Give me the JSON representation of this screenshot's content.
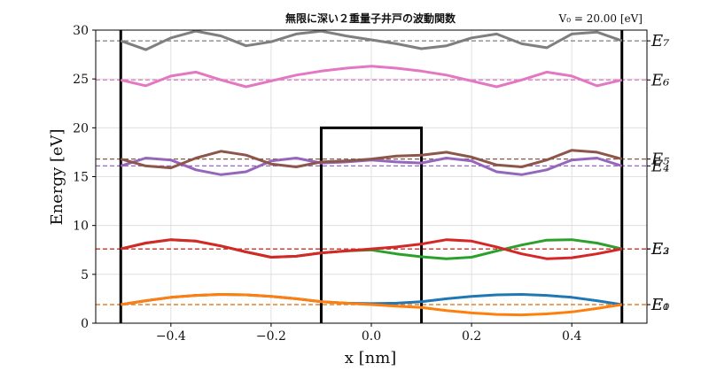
{
  "chart_data": {
    "type": "line",
    "title": "無限に深い２重量子井戸の波動関数",
    "annotation": "V₀ = 20.00 [eV]",
    "xlabel": "x [nm]",
    "ylabel": "Energy [eV]",
    "xlim": [
      -0.55,
      0.55
    ],
    "ylim": [
      0,
      30
    ],
    "xticks": [
      -0.4,
      -0.2,
      0.0,
      0.2,
      0.4
    ],
    "xtick_labels": [
      "−0.4",
      "−0.2",
      "0.0",
      "0.2",
      "0.4"
    ],
    "yticks": [
      0,
      5,
      10,
      15,
      20,
      25,
      30
    ],
    "ytick_labels": [
      "0",
      "5",
      "10",
      "15",
      "20",
      "25",
      "30"
    ],
    "grid": true,
    "potential": {
      "outer_walls_x": [
        -0.5,
        0.5
      ],
      "barrier_x": [
        -0.1,
        0.1
      ],
      "barrier_height": 20
    },
    "levels": [
      {
        "label": "E₀",
        "energy": 1.9,
        "color": "#1f77b4"
      },
      {
        "label": "E₁",
        "energy": 1.9,
        "color": "#ff7f0e"
      },
      {
        "label": "E₂",
        "energy": 7.6,
        "color": "#2ca02c"
      },
      {
        "label": "E₃",
        "energy": 7.6,
        "color": "#d62728"
      },
      {
        "label": "E₄",
        "energy": 16.1,
        "color": "#9467bd"
      },
      {
        "label": "E₅",
        "energy": 16.8,
        "color": "#8c564b"
      },
      {
        "label": "E₆",
        "energy": 24.9,
        "color": "#e377c2"
      },
      {
        "label": "E₇",
        "energy": 28.9,
        "color": "#7f7f7f"
      }
    ],
    "series": [
      {
        "label": "E₀",
        "color": "#1f77b4",
        "x": [
          -0.5,
          -0.45,
          -0.4,
          -0.35,
          -0.3,
          -0.25,
          -0.2,
          -0.15,
          -0.1,
          -0.05,
          0,
          0.05,
          0.1,
          0.15,
          0.2,
          0.25,
          0.3,
          0.35,
          0.4,
          0.45,
          0.5
        ],
        "y": [
          1.9,
          2.3,
          2.65,
          2.85,
          2.95,
          2.9,
          2.75,
          2.5,
          2.2,
          2.05,
          2.0,
          2.05,
          2.2,
          2.5,
          2.75,
          2.9,
          2.95,
          2.85,
          2.65,
          2.3,
          1.9
        ]
      },
      {
        "label": "E₁",
        "color": "#ff7f0e",
        "x": [
          -0.5,
          -0.45,
          -0.4,
          -0.35,
          -0.3,
          -0.25,
          -0.2,
          -0.15,
          -0.1,
          -0.05,
          0,
          0.05,
          0.1,
          0.15,
          0.2,
          0.25,
          0.3,
          0.35,
          0.4,
          0.45,
          0.5
        ],
        "y": [
          1.9,
          2.3,
          2.65,
          2.85,
          2.95,
          2.9,
          2.75,
          2.5,
          2.2,
          2.05,
          1.9,
          1.75,
          1.6,
          1.3,
          1.05,
          0.9,
          0.85,
          0.95,
          1.15,
          1.5,
          1.9
        ]
      },
      {
        "label": "E₂",
        "color": "#2ca02c",
        "x": [
          -0.5,
          -0.45,
          -0.4,
          -0.35,
          -0.3,
          -0.25,
          -0.2,
          -0.15,
          -0.1,
          -0.05,
          0,
          0.05,
          0.1,
          0.15,
          0.2,
          0.25,
          0.3,
          0.35,
          0.4,
          0.45,
          0.5
        ],
        "y": [
          7.6,
          8.2,
          8.55,
          8.4,
          7.9,
          7.3,
          6.75,
          6.85,
          7.2,
          7.4,
          7.5,
          7.1,
          6.8,
          6.6,
          6.75,
          7.4,
          8.0,
          8.5,
          8.55,
          8.2,
          7.6
        ]
      },
      {
        "label": "E₃",
        "color": "#d62728",
        "x": [
          -0.5,
          -0.45,
          -0.4,
          -0.35,
          -0.3,
          -0.25,
          -0.2,
          -0.15,
          -0.1,
          -0.05,
          0,
          0.05,
          0.1,
          0.15,
          0.2,
          0.25,
          0.3,
          0.35,
          0.4,
          0.45,
          0.5
        ],
        "y": [
          7.6,
          8.2,
          8.55,
          8.4,
          7.9,
          7.3,
          6.75,
          6.85,
          7.2,
          7.4,
          7.6,
          7.8,
          8.1,
          8.55,
          8.4,
          7.8,
          7.1,
          6.6,
          6.7,
          7.1,
          7.6
        ]
      },
      {
        "label": "E₄",
        "color": "#9467bd",
        "x": [
          -0.5,
          -0.45,
          -0.4,
          -0.35,
          -0.3,
          -0.25,
          -0.2,
          -0.15,
          -0.1,
          -0.05,
          0,
          0.05,
          0.1,
          0.15,
          0.2,
          0.25,
          0.3,
          0.35,
          0.4,
          0.45,
          0.5
        ],
        "y": [
          16.1,
          16.9,
          16.7,
          15.7,
          15.2,
          15.5,
          16.6,
          16.9,
          16.4,
          16.5,
          16.7,
          16.5,
          16.4,
          16.9,
          16.6,
          15.5,
          15.2,
          15.7,
          16.7,
          16.9,
          16.1
        ]
      },
      {
        "label": "E₅",
        "color": "#8c564b",
        "x": [
          -0.5,
          -0.45,
          -0.4,
          -0.35,
          -0.3,
          -0.25,
          -0.2,
          -0.15,
          -0.1,
          -0.05,
          0,
          0.05,
          0.1,
          0.15,
          0.2,
          0.25,
          0.3,
          0.35,
          0.4,
          0.45,
          0.5
        ],
        "y": [
          16.8,
          16.1,
          15.9,
          16.9,
          17.6,
          17.2,
          16.3,
          16.0,
          16.5,
          16.6,
          16.8,
          17.1,
          17.2,
          17.5,
          17.0,
          16.2,
          16.0,
          16.7,
          17.7,
          17.5,
          16.8
        ]
      },
      {
        "label": "E₆",
        "color": "#e377c2",
        "x": [
          -0.5,
          -0.45,
          -0.4,
          -0.35,
          -0.3,
          -0.25,
          -0.2,
          -0.15,
          -0.1,
          -0.05,
          0,
          0.05,
          0.1,
          0.15,
          0.2,
          0.25,
          0.3,
          0.35,
          0.4,
          0.45,
          0.5
        ],
        "y": [
          24.9,
          24.3,
          25.3,
          25.7,
          24.9,
          24.2,
          24.8,
          25.4,
          25.8,
          26.1,
          26.3,
          26.1,
          25.8,
          25.4,
          24.8,
          24.2,
          24.9,
          25.7,
          25.3,
          24.3,
          24.9
        ]
      },
      {
        "label": "E₇",
        "color": "#7f7f7f",
        "x": [
          -0.5,
          -0.45,
          -0.4,
          -0.35,
          -0.3,
          -0.25,
          -0.2,
          -0.15,
          -0.1,
          -0.05,
          0,
          0.05,
          0.1,
          0.15,
          0.2,
          0.25,
          0.3,
          0.35,
          0.4,
          0.45,
          0.5
        ],
        "y": [
          28.9,
          28.0,
          29.2,
          29.9,
          29.4,
          28.4,
          28.8,
          29.6,
          29.9,
          29.4,
          29.0,
          28.6,
          28.1,
          28.4,
          29.2,
          29.6,
          28.6,
          28.2,
          29.6,
          29.8,
          28.9
        ]
      }
    ]
  }
}
